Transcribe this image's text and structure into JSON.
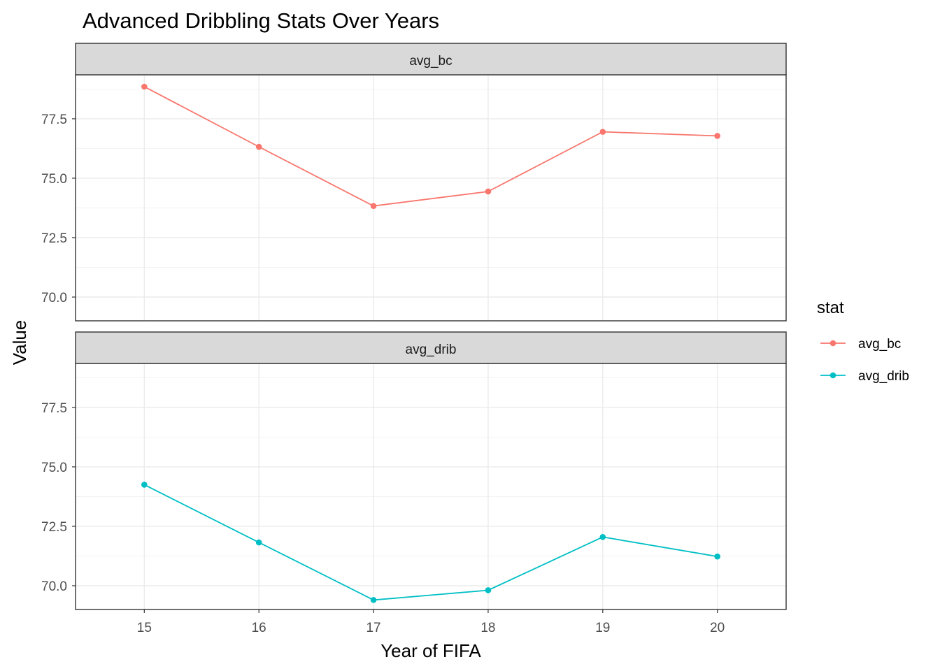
{
  "chart_data": {
    "type": "line",
    "title": "Advanced Dribbling Stats Over Years",
    "xlabel": "Year of FIFA",
    "ylabel": "Value",
    "x": [
      15,
      16,
      17,
      18,
      19,
      20
    ],
    "xlim": [
      14.4,
      20.6
    ],
    "ylim": [
      69.0,
      79.35
    ],
    "yticks": [
      70.0,
      72.5,
      75.0,
      77.5
    ],
    "ytick_labels": [
      "70.0",
      "72.5",
      "75.0",
      "77.5"
    ],
    "xtick_labels": [
      "15",
      "16",
      "17",
      "18",
      "19",
      "20"
    ],
    "grid": true,
    "facet_by": "stat",
    "legend": {
      "title": "stat",
      "position": "right"
    },
    "series": [
      {
        "name": "avg_bc",
        "color": "#F8766D",
        "values": [
          78.85,
          76.32,
          73.83,
          74.44,
          76.95,
          76.78
        ]
      },
      {
        "name": "avg_drib",
        "color": "#00BFC4",
        "values": [
          74.25,
          71.82,
          69.4,
          69.81,
          72.05,
          71.23
        ]
      }
    ]
  }
}
